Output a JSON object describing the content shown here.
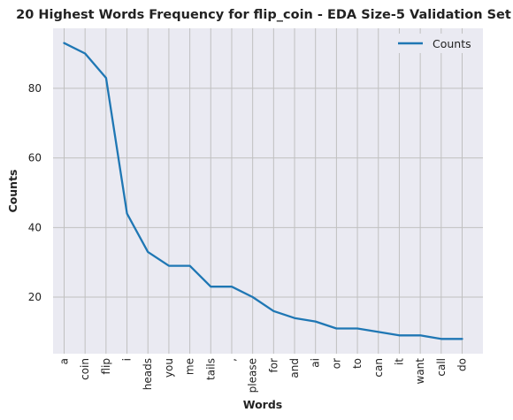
{
  "chart_data": {
    "type": "line",
    "title": "20 Highest Words Frequency for flip_coin - EDA Size-5 Validation Set",
    "xlabel": "Words",
    "ylabel": "Counts",
    "categories": [
      "a",
      "coin",
      "flip",
      "i",
      "heads",
      "you",
      "me",
      "tails",
      ",",
      "please",
      "for",
      "and",
      "ai",
      "or",
      "to",
      "can",
      "it",
      "want",
      "call",
      "do"
    ],
    "series": [
      {
        "name": "Counts",
        "values": [
          93,
          90,
          83,
          44,
          33,
          29,
          29,
          23,
          23,
          20,
          16,
          14,
          13,
          11,
          11,
          10,
          9,
          9,
          8,
          8
        ]
      }
    ],
    "ylim": [
      3.75,
      97.25
    ],
    "yticks": [
      20,
      40,
      60,
      80
    ],
    "grid": true,
    "legend_position": "top-right",
    "colors": {
      "line": "#1f77b4",
      "plot_bg": "#eaeaf2",
      "grid": "#c0c0c0"
    }
  }
}
